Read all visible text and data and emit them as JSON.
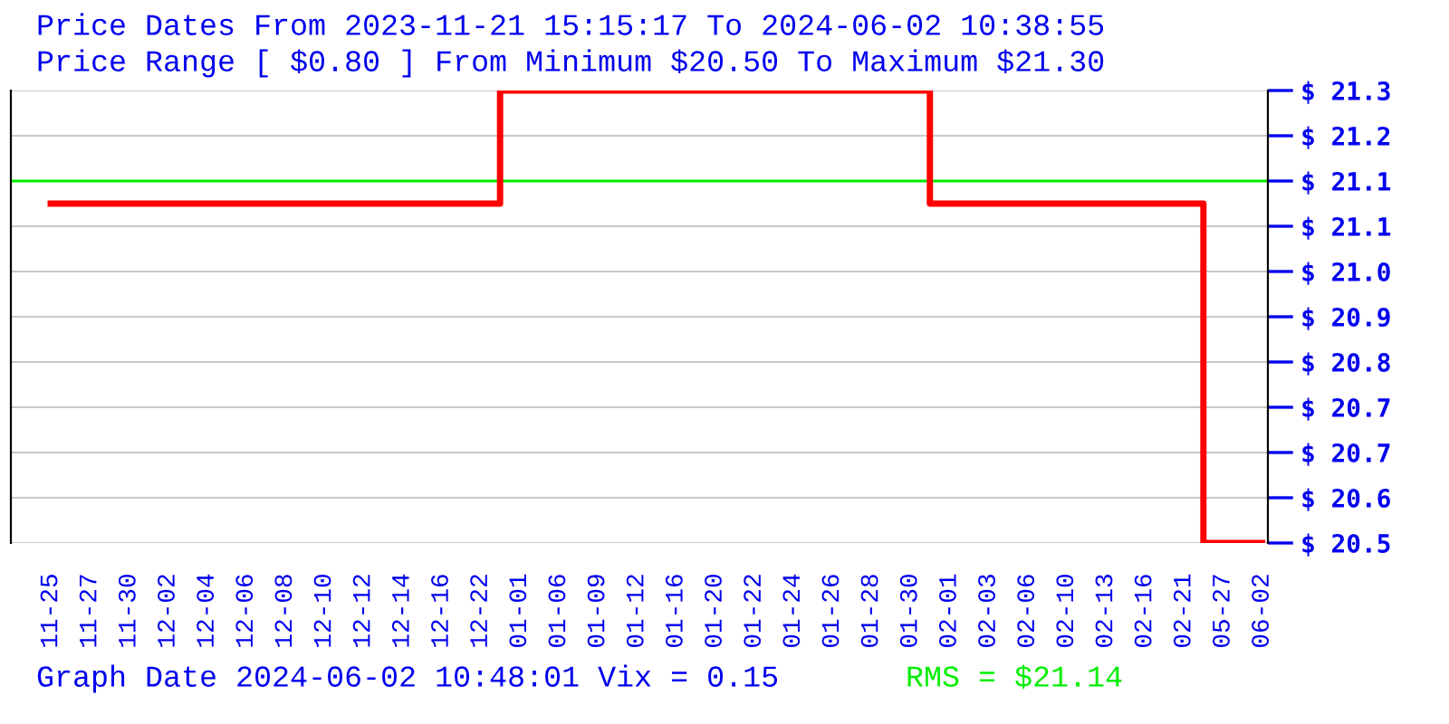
{
  "chart_data": {
    "type": "step",
    "title": "Price Dates From 2023-11-21 15:15:17 To 2024-06-02 10:38:55",
    "subtitle": "Price Range [ $0.80 ] From Minimum $20.50 To Maximum $21.30",
    "categories": [
      "11-25",
      "11-27",
      "11-30",
      "12-02",
      "12-04",
      "12-06",
      "12-08",
      "12-10",
      "12-12",
      "12-14",
      "12-16",
      "12-22",
      "01-01",
      "01-06",
      "01-09",
      "01-12",
      "01-16",
      "01-20",
      "01-22",
      "01-24",
      "01-26",
      "01-28",
      "01-30",
      "02-01",
      "02-03",
      "02-06",
      "02-10",
      "02-13",
      "02-16",
      "02-21",
      "05-27",
      "06-02"
    ],
    "series": [
      {
        "color": "#ff0000",
        "values": [
          21.1,
          21.1,
          21.1,
          21.1,
          21.1,
          21.1,
          21.1,
          21.1,
          21.1,
          21.1,
          21.1,
          21.1,
          21.3,
          21.3,
          21.3,
          21.3,
          21.3,
          21.3,
          21.3,
          21.3,
          21.3,
          21.3,
          21.3,
          21.1,
          21.1,
          21.1,
          21.1,
          21.1,
          21.1,
          21.1,
          20.5,
          20.5
        ]
      }
    ],
    "ylim": [
      20.5,
      21.3
    ],
    "yticks": [
      {
        "value": 20.5,
        "label": "$ 20.5"
      },
      {
        "value": 20.58,
        "label": "$ 20.6"
      },
      {
        "value": 20.66,
        "label": "$ 20.7"
      },
      {
        "value": 20.74,
        "label": "$ 20.7"
      },
      {
        "value": 20.82,
        "label": "$ 20.8"
      },
      {
        "value": 20.9,
        "label": "$ 20.9"
      },
      {
        "value": 20.98,
        "label": "$ 21.0"
      },
      {
        "value": 21.06,
        "label": "$ 21.1"
      },
      {
        "value": 21.14,
        "label": "$ 21.1"
      },
      {
        "value": 21.22,
        "label": "$ 21.2"
      },
      {
        "value": 21.3,
        "label": "$ 21.3"
      }
    ],
    "grid": "y",
    "ref_lines": [
      {
        "axis": "y",
        "value": 21.14,
        "label": "RMS = $21.14",
        "color": "#00ee00"
      }
    ],
    "annotations": [
      "Graph Date 2024-06-02 10:48:01 Vix = 0.15"
    ]
  }
}
